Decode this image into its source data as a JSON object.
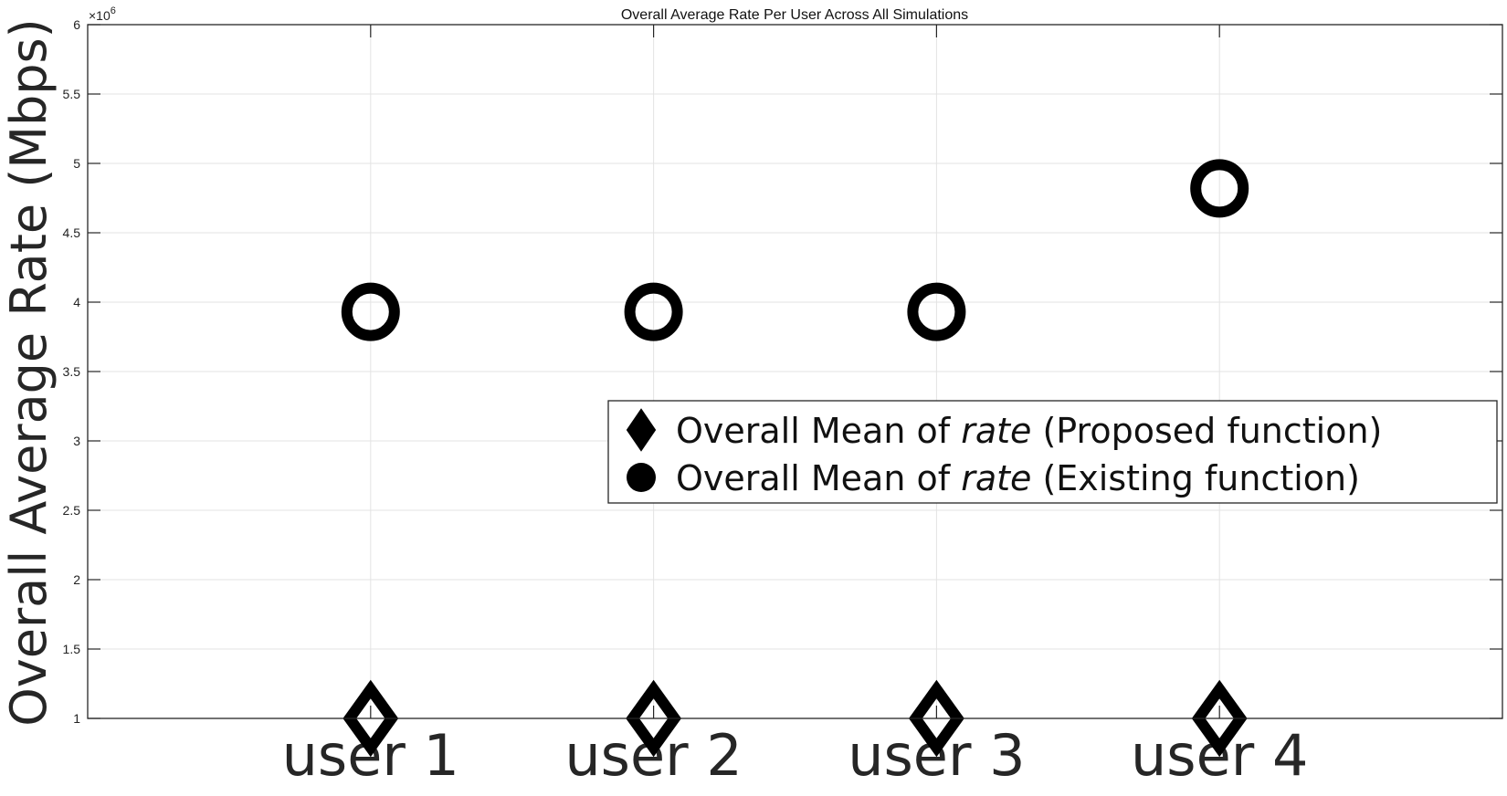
{
  "chart_data": {
    "type": "scatter",
    "title": "Overall Average Rate Per User Across All Simulations",
    "ylabel": "Overall Average Rate (Mbps)",
    "xlabel": "",
    "categories": [
      "user 1",
      "user 2",
      "user 3",
      "user 4"
    ],
    "y_exponent_label": "×10",
    "y_exponent": "6",
    "ylim": [
      1,
      6
    ],
    "yticks": [
      1,
      1.5,
      2,
      2.5,
      3,
      3.5,
      4,
      4.5,
      5,
      5.5,
      6
    ],
    "grid": true,
    "legend_position": "center-right",
    "series": [
      {
        "name": "Overall Mean of rate (Proposed function)",
        "name_prefix": "Overall Mean of ",
        "name_italic": "rate",
        "name_suffix": " (Proposed function)",
        "marker": "diamond",
        "values": [
          1.0,
          1.0,
          1.0,
          1.0
        ]
      },
      {
        "name": "Overall Mean of rate (Existing function)",
        "name_prefix": "Overall Mean of ",
        "name_italic": "rate",
        "name_suffix": " (Existing function)",
        "marker": "circle",
        "values": [
          3.93,
          3.93,
          3.93,
          4.82
        ]
      }
    ],
    "colors": {
      "marker": "#000000",
      "grid": "#e3e3e3",
      "axis": "#262626"
    }
  }
}
